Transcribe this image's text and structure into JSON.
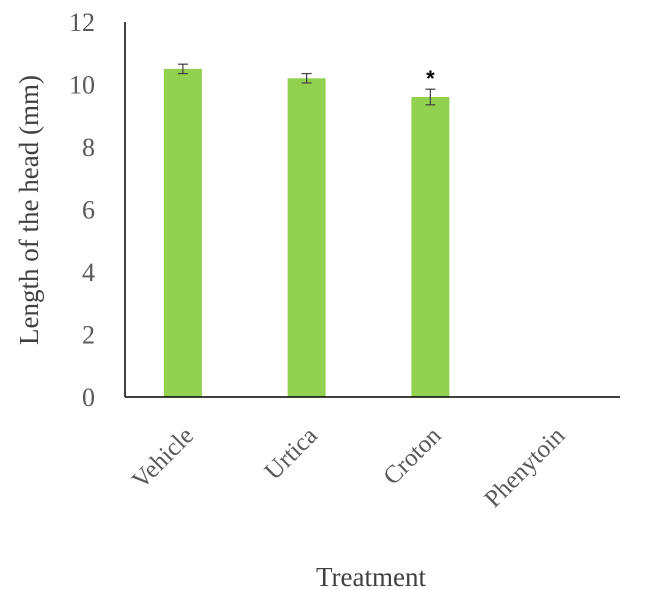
{
  "chart_data": {
    "type": "bar",
    "categories": [
      "Vehicle",
      "Urtica",
      "Croton",
      "Phenytoin"
    ],
    "values": [
      10.5,
      10.2,
      9.6,
      0
    ],
    "errors": [
      0.15,
      0.15,
      0.25,
      0
    ],
    "annotations": [
      "",
      "",
      "*",
      ""
    ],
    "xlabel": "Treatment",
    "ylabel": "Length of the head (mm)",
    "ylim": [
      0,
      12
    ],
    "yticks": [
      0,
      2,
      4,
      6,
      8,
      10,
      12
    ],
    "grid": false,
    "bar_color": "#92d050",
    "axis_color": "#000000",
    "text_color": "#595959"
  }
}
